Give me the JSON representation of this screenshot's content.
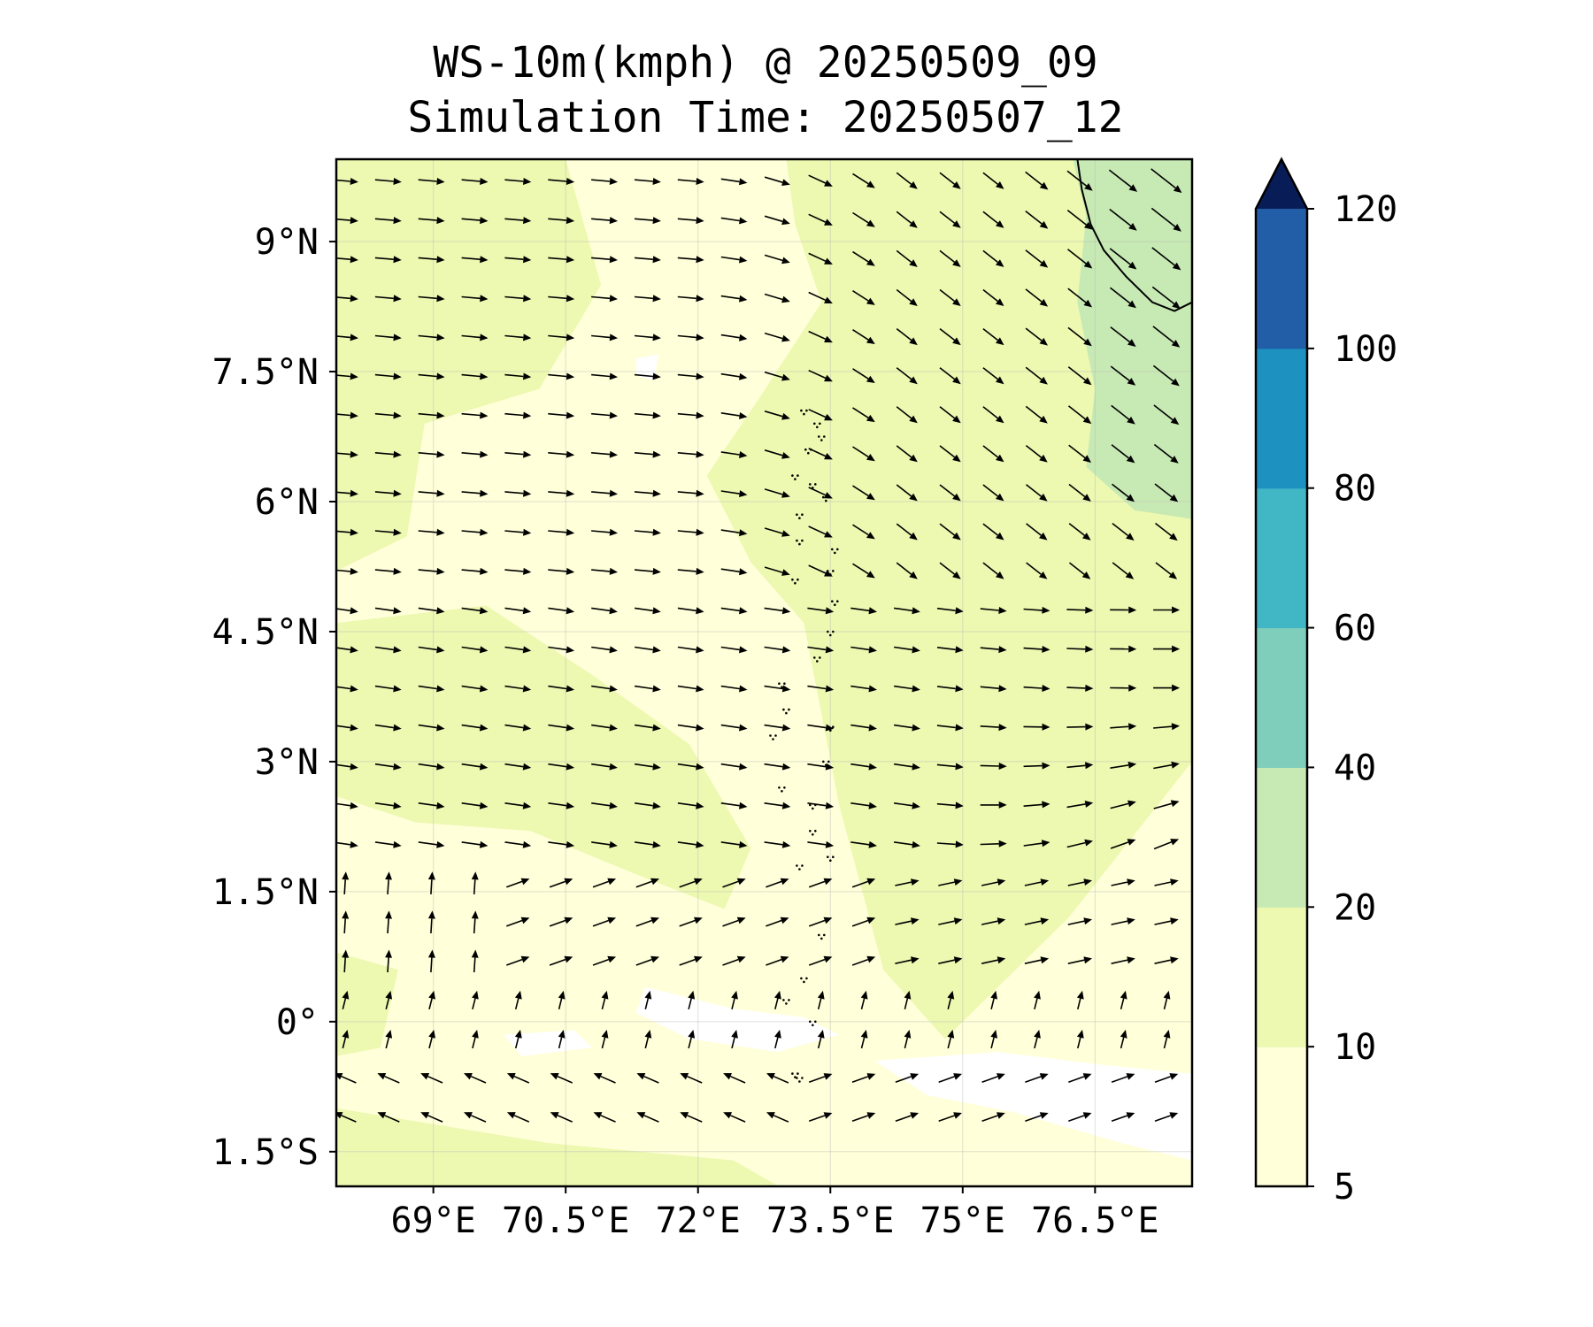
{
  "title": "WS-10m(kmph) @ 20250509_09",
  "subtitle": "Simulation Time: 20250507_12",
  "chart_data": {
    "type": "heatmap",
    "variable": "WS-10m(kmph)",
    "map_extent": {
      "lon": [
        67.9,
        77.6
      ],
      "lat": [
        -1.9,
        9.95
      ]
    },
    "x_tick_values": [
      69,
      70.5,
      72,
      73.5,
      75,
      76.5
    ],
    "x_tick_labels": [
      "69°E",
      "70.5°E",
      "72°E",
      "73.5°E",
      "75°E",
      "76.5°E"
    ],
    "y_tick_values": [
      9,
      7.5,
      6,
      4.5,
      3,
      1.5,
      0,
      -1.5
    ],
    "y_tick_labels": [
      "9°N",
      "7.5°N",
      "6°N",
      "4.5°N",
      "3°N",
      "1.5°N",
      "0°",
      "1.5°S"
    ],
    "grid": true,
    "colorbar": {
      "orientation": "vertical",
      "placement": "right",
      "extend": "max",
      "levels": [
        5,
        10,
        20,
        40,
        60,
        80,
        100,
        120
      ],
      "tick_labels": [
        "5",
        "10",
        "20",
        "40",
        "60",
        "80",
        "100",
        "120"
      ],
      "colors": [
        "#ffffd9",
        "#edf8b1",
        "#c7e9b4",
        "#7fcdbb",
        "#41b6c4",
        "#1d91c0",
        "#225ea8",
        "#0c2c84"
      ],
      "extend_color": "#081d58"
    },
    "field_regions": [
      {
        "lon": [
          76.3,
          77.6
        ],
        "lat": [
          5.8,
          9.95
        ],
        "range": "20-40"
      },
      {
        "lon": [
          67.9,
          77.6
        ],
        "lat": [
          -1.9,
          9.95
        ],
        "range": "5-20"
      },
      {
        "lon": [
          73.9,
          77.6
        ],
        "lat": [
          -1.6,
          -0.3
        ],
        "range": "<5"
      }
    ],
    "wind_field_description": "Westerly winds in the west, turning north-westerly to south-easterly flow east of 73.5°E; weak winds near 0°; northerly component near the south-west corner."
  }
}
